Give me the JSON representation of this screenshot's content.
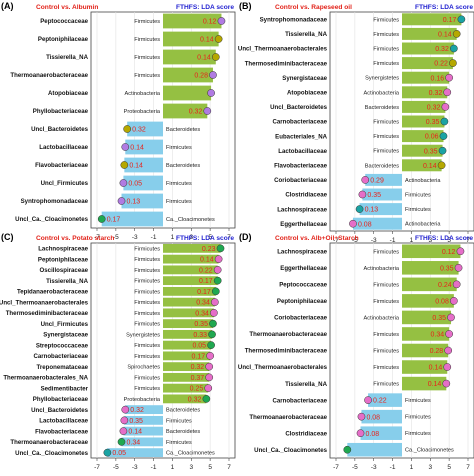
{
  "colors": {
    "bar_green": "#95c042",
    "bar_blue": "#87ceeb",
    "value_text": "#e8231b",
    "title_red": "#e2231a",
    "title_blue": "#1f1fd0",
    "dot_purple": "#b07be2",
    "dot_pink": "#e56ec8",
    "dot_green": "#1fa850",
    "dot_teal": "#1aa3a3",
    "dot_olive": "#b5a800"
  },
  "chart_data": [
    {
      "type": "bar",
      "panel_label": "(A)",
      "title": "Control vs. Albumin",
      "score_label": "FTHFS: LDA score",
      "xlim": [
        -7,
        7
      ],
      "xticks": [
        -7,
        -5,
        -3,
        -1,
        1,
        3,
        5,
        7
      ],
      "rows": [
        {
          "taxon": "Peptococcaceae",
          "phylum": "Firmicutes",
          "lda": 6.2,
          "p": "0.12",
          "dot": "purple"
        },
        {
          "taxon": "Peptoniphilaceae",
          "phylum": "Firmicutes",
          "lda": 5.9,
          "p": "0.14",
          "dot": "olive"
        },
        {
          "taxon": "Tissierella_NA",
          "phylum": "Firmicutes",
          "lda": 5.6,
          "p": "0.14",
          "dot": "olive"
        },
        {
          "taxon": "Thermoanaerobacteraceae",
          "phylum": "Firmicutes",
          "lda": 5.3,
          "p": "0.28",
          "dot": "purple"
        },
        {
          "taxon": "Atopobiaceae",
          "phylum": "Actinobacteria",
          "lda": 5.1,
          "p": "",
          "dot": "purple"
        },
        {
          "taxon": "Phyllobacteriaceae",
          "phylum": "Proteobacteria",
          "lda": 4.7,
          "p": "0.32",
          "dot": "purple"
        },
        {
          "taxon": "Uncl_Bacteroidetes",
          "phylum": "Bacteroidetes",
          "lda": -3.8,
          "p": "0.32",
          "dot": "olive"
        },
        {
          "taxon": "Lactobacillaceae",
          "phylum": "Firmicutes",
          "lda": -4.0,
          "p": "0.14",
          "dot": "purple"
        },
        {
          "taxon": "Flavobacteriaceae",
          "phylum": "Bacteroidetes",
          "lda": -4.1,
          "p": "0.14",
          "dot": "olive"
        },
        {
          "taxon": "Uncl_Firmicutes",
          "phylum": "Firmicutes",
          "lda": -4.2,
          "p": "0.05",
          "dot": "purple"
        },
        {
          "taxon": "Syntrophomonadaceae",
          "phylum": "Firmicutes",
          "lda": -4.4,
          "p": "0.13",
          "dot": "purple"
        },
        {
          "taxon": "Uncl_Ca._Cloacimonetes",
          "phylum": "Ca._Cloacimonetes",
          "lda": -6.5,
          "p": "0.17",
          "dot": "green"
        }
      ]
    },
    {
      "type": "bar",
      "panel_label": "(B)",
      "title": "Control vs. Rapeseed oil",
      "score_label": "FTHFS: LDA score",
      "xlim": [
        -7,
        7
      ],
      "xticks": [
        -7,
        -5,
        -3,
        -1,
        1,
        3,
        5,
        7
      ],
      "rows": [
        {
          "taxon": "Syntrophomonadaceae",
          "phylum": "Firmicutes",
          "lda": 6.3,
          "p": "0.17",
          "dot": "teal"
        },
        {
          "taxon": "Tissierella_NA",
          "phylum": "Firmicutes",
          "lda": 5.8,
          "p": "0.14",
          "dot": "olive"
        },
        {
          "taxon": "Uncl_Thermoanaerobacterales",
          "phylum": "Firmicutes",
          "lda": 5.5,
          "p": "0.32",
          "dot": "teal"
        },
        {
          "taxon": "Thermosediminibacteraceae",
          "phylum": "Firmicutes",
          "lda": 5.4,
          "p": "0.22",
          "dot": "olive"
        },
        {
          "taxon": "Synergistaceae",
          "phylum": "Synergistetes",
          "lda": 5.0,
          "p": "0.16",
          "dot": "pink"
        },
        {
          "taxon": "Atopobiaceae",
          "phylum": "Actinobacteria",
          "lda": 4.8,
          "p": "0.32",
          "dot": "pink"
        },
        {
          "taxon": "Uncl_Bacteroidetes",
          "phylum": "Bacteroidetes",
          "lda": 4.6,
          "p": "0.32",
          "dot": "pink"
        },
        {
          "taxon": "Carnobacteriaceae",
          "phylum": "Firmicutes",
          "lda": 4.5,
          "p": "0.35",
          "dot": "teal"
        },
        {
          "taxon": "Eubacteriales_NA",
          "phylum": "Firmicutes",
          "lda": 4.4,
          "p": "0.06",
          "dot": "teal"
        },
        {
          "taxon": "Lactobacillaceae",
          "phylum": "Firmicutes",
          "lda": 4.3,
          "p": "0.35",
          "dot": "teal"
        },
        {
          "taxon": "Flavobacteriaceae",
          "phylum": "Bacteroidetes",
          "lda": 4.2,
          "p": "0.14",
          "dot": "olive"
        },
        {
          "taxon": "Coriobacteriaceae",
          "phylum": "Actinobacteria",
          "lda": -3.9,
          "p": "0.29",
          "dot": "pink"
        },
        {
          "taxon": "Clostridiaceae",
          "phylum": "Firmicutes",
          "lda": -4.2,
          "p": "0.35",
          "dot": "pink"
        },
        {
          "taxon": "Lachnospiraceae",
          "phylum": "Firmicutes",
          "lda": -4.5,
          "p": "0.13",
          "dot": "teal"
        },
        {
          "taxon": "Eggerthellaceae",
          "phylum": "Actinobacteria",
          "lda": -5.2,
          "p": "0.08",
          "dot": "pink"
        }
      ]
    },
    {
      "type": "bar",
      "panel_label": "(C)",
      "title": "Control vs. Potato starch",
      "score_label": "FTHFS: LDA score",
      "xlim": [
        -7,
        7
      ],
      "xticks": [
        -7,
        -5,
        -3,
        -1,
        1,
        3,
        5,
        7
      ],
      "rows": [
        {
          "taxon": "Lachnospiraceae",
          "phylum": "Firmicutes",
          "lda": 6.1,
          "p": "0.23",
          "dot": "green"
        },
        {
          "taxon": "Peptoniphilaceae",
          "phylum": "Firmicutes",
          "lda": 5.9,
          "p": "0.14",
          "dot": "pink"
        },
        {
          "taxon": "Oscillospiraceae",
          "phylum": "Firmicutes",
          "lda": 5.8,
          "p": "0.22",
          "dot": "pink"
        },
        {
          "taxon": "Tissierella_NA",
          "phylum": "Firmicutes",
          "lda": 5.8,
          "p": "0.17",
          "dot": "green"
        },
        {
          "taxon": "Tepidanaerobacteraceae",
          "phylum": "Firmicutes",
          "lda": 5.6,
          "p": "0.17",
          "dot": "green"
        },
        {
          "taxon": "Uncl_Thermoanaerobacterales",
          "phylum": "Firmicutes",
          "lda": 5.5,
          "p": "0.34",
          "dot": "pink"
        },
        {
          "taxon": "Thermosediminibacteraceae",
          "phylum": "Firmicutes",
          "lda": 5.4,
          "p": "0.34",
          "dot": "pink"
        },
        {
          "taxon": "Uncl_Firmicutes",
          "phylum": "Firmicutes",
          "lda": 5.3,
          "p": "0.35",
          "dot": "green"
        },
        {
          "taxon": "Synergistaceae",
          "phylum": "Synergistetes",
          "lda": 5.2,
          "p": "0.33",
          "dot": "green"
        },
        {
          "taxon": "Streptococcaceae",
          "phylum": "Firmicutes",
          "lda": 5.1,
          "p": "0.05",
          "dot": "green"
        },
        {
          "taxon": "Carnobacteriaceae",
          "phylum": "Firmicutes",
          "lda": 5.0,
          "p": "0.17",
          "dot": "pink"
        },
        {
          "taxon": "Treponemataceae",
          "phylum": "Spirochaetes",
          "lda": 4.9,
          "p": "0.32",
          "dot": "pink"
        },
        {
          "taxon": "Thermoanaerobacterales_NA",
          "phylum": "Firmicutes",
          "lda": 4.9,
          "p": "0.37",
          "dot": "pink"
        },
        {
          "taxon": "Sedimentibacter",
          "phylum": "Firmicutes",
          "lda": 4.8,
          "p": "0.25",
          "dot": "pink"
        },
        {
          "taxon": "Phyllobacteriaceae",
          "phylum": "Proteobacteria",
          "lda": 4.6,
          "p": "0.32",
          "dot": "green"
        },
        {
          "taxon": "Uncl_Bacteroidetes",
          "phylum": "Bacteroidetes",
          "lda": -4.0,
          "p": "0.32",
          "dot": "pink"
        },
        {
          "taxon": "Lactobacillaceae",
          "phylum": "Firmicutes",
          "lda": -4.1,
          "p": "0.35",
          "dot": "pink"
        },
        {
          "taxon": "Flavobacteriaceae",
          "phylum": "Bacteroidetes",
          "lda": -4.2,
          "p": "0.14",
          "dot": "pink"
        },
        {
          "taxon": "Thermoanaerobacteraceae",
          "phylum": "Firmicutes",
          "lda": -4.4,
          "p": "0.34",
          "dot": "green"
        },
        {
          "taxon": "Uncl_Ca._Cloacimonetes",
          "phylum": "Ca._Cloacimonetes",
          "lda": -5.9,
          "p": "0.05",
          "dot": "teal"
        }
      ]
    },
    {
      "type": "bar",
      "panel_label": "(D)",
      "title": "Control vs. Alb+Oil+Starch",
      "score_label": "FTHFS: LDA score",
      "xlim": [
        -7,
        7
      ],
      "xticks": [
        -7,
        -5,
        -3,
        -1,
        1,
        3,
        5,
        7
      ],
      "rows": [
        {
          "taxon": "Lachnospiraceae",
          "phylum": "Firmicutes",
          "lda": 6.2,
          "p": "0.12",
          "dot": "pink"
        },
        {
          "taxon": "Eggerthellaceae",
          "phylum": "Actinobacteria",
          "lda": 6.0,
          "p": "0.35",
          "dot": "pink"
        },
        {
          "taxon": "Peptococcaceae",
          "phylum": "Firmicutes",
          "lda": 5.8,
          "p": "0.24",
          "dot": "pink"
        },
        {
          "taxon": "Peptoniphilaceae",
          "phylum": "Firmicutes",
          "lda": 5.5,
          "p": "0.08",
          "dot": "pink"
        },
        {
          "taxon": "Coriobacteriaceae",
          "phylum": "Actinobacteria",
          "lda": 5.2,
          "p": "0.35",
          "dot": "pink"
        },
        {
          "taxon": "Thermoanaerobacteraceae",
          "phylum": "Firmicutes",
          "lda": 5.0,
          "p": "0.34",
          "dot": "pink"
        },
        {
          "taxon": "Thermosediminibacteraceae",
          "phylum": "Firmicutes",
          "lda": 4.9,
          "p": "0.28",
          "dot": "pink"
        },
        {
          "taxon": "Uncl_Thermoanaerobacterales",
          "phylum": "Firmicutes",
          "lda": 4.8,
          "p": "0.14",
          "dot": "pink"
        },
        {
          "taxon": "Tissierella_NA",
          "phylum": "Firmicutes",
          "lda": 4.7,
          "p": "0.14",
          "dot": "pink"
        },
        {
          "taxon": "Carnobacteriaceae",
          "phylum": "Firmicutes",
          "lda": -3.6,
          "p": "0.22",
          "dot": "pink"
        },
        {
          "taxon": "Thermoanaerobacteraceae",
          "phylum": "Firmicutes",
          "lda": -4.3,
          "p": "0.08",
          "dot": "pink"
        },
        {
          "taxon": "Clostridiaceae",
          "phylum": "Firmicutes",
          "lda": -4.4,
          "p": "0.08",
          "dot": "pink"
        },
        {
          "taxon": "Uncl_Ca._Cloacimonetes",
          "phylum": "Ca._Cloacimonetes",
          "lda": -5.8,
          "p": "",
          "dot": "green"
        }
      ]
    }
  ]
}
